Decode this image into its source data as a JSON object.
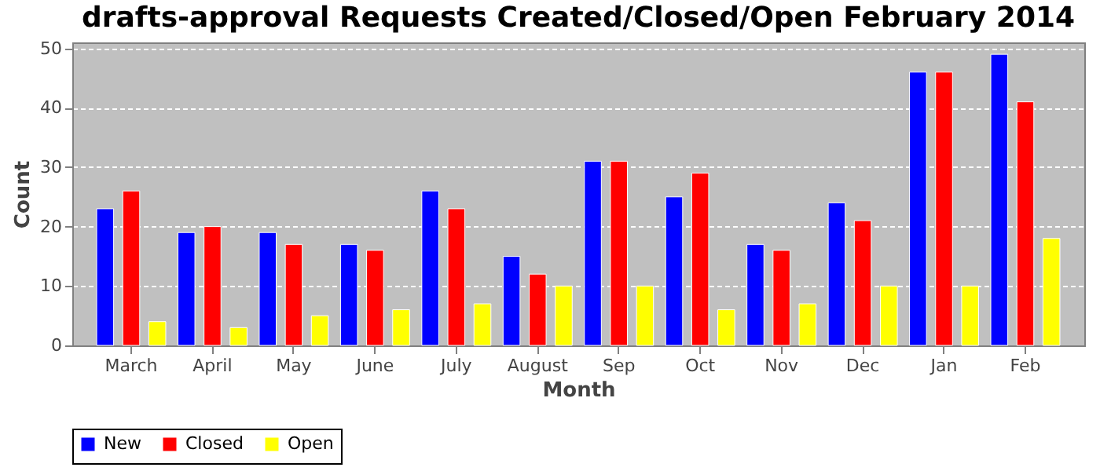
{
  "chart_data": {
    "type": "bar",
    "title": "drafts-approval Requests Created/Closed/Open February 2014",
    "xlabel": "Month",
    "ylabel": "Count",
    "categories": [
      "March",
      "April",
      "May",
      "June",
      "July",
      "August",
      "Sep",
      "Oct",
      "Nov",
      "Dec",
      "Jan",
      "Feb"
    ],
    "series": [
      {
        "name": "New",
        "color": "#0000ff",
        "values": [
          23,
          19,
          19,
          17,
          26,
          15,
          31,
          25,
          17,
          24,
          46,
          49
        ]
      },
      {
        "name": "Closed",
        "color": "#ff0000",
        "values": [
          26,
          20,
          17,
          16,
          23,
          12,
          31,
          29,
          16,
          21,
          46,
          41
        ]
      },
      {
        "name": "Open",
        "color": "#ffff00",
        "values": [
          4,
          3,
          5,
          6,
          7,
          10,
          10,
          6,
          7,
          10,
          10,
          18
        ]
      }
    ],
    "ylim": [
      0,
      51
    ],
    "yticks": [
      0,
      10,
      20,
      30,
      40,
      50
    ],
    "grid": "y",
    "legend": "bottom"
  }
}
